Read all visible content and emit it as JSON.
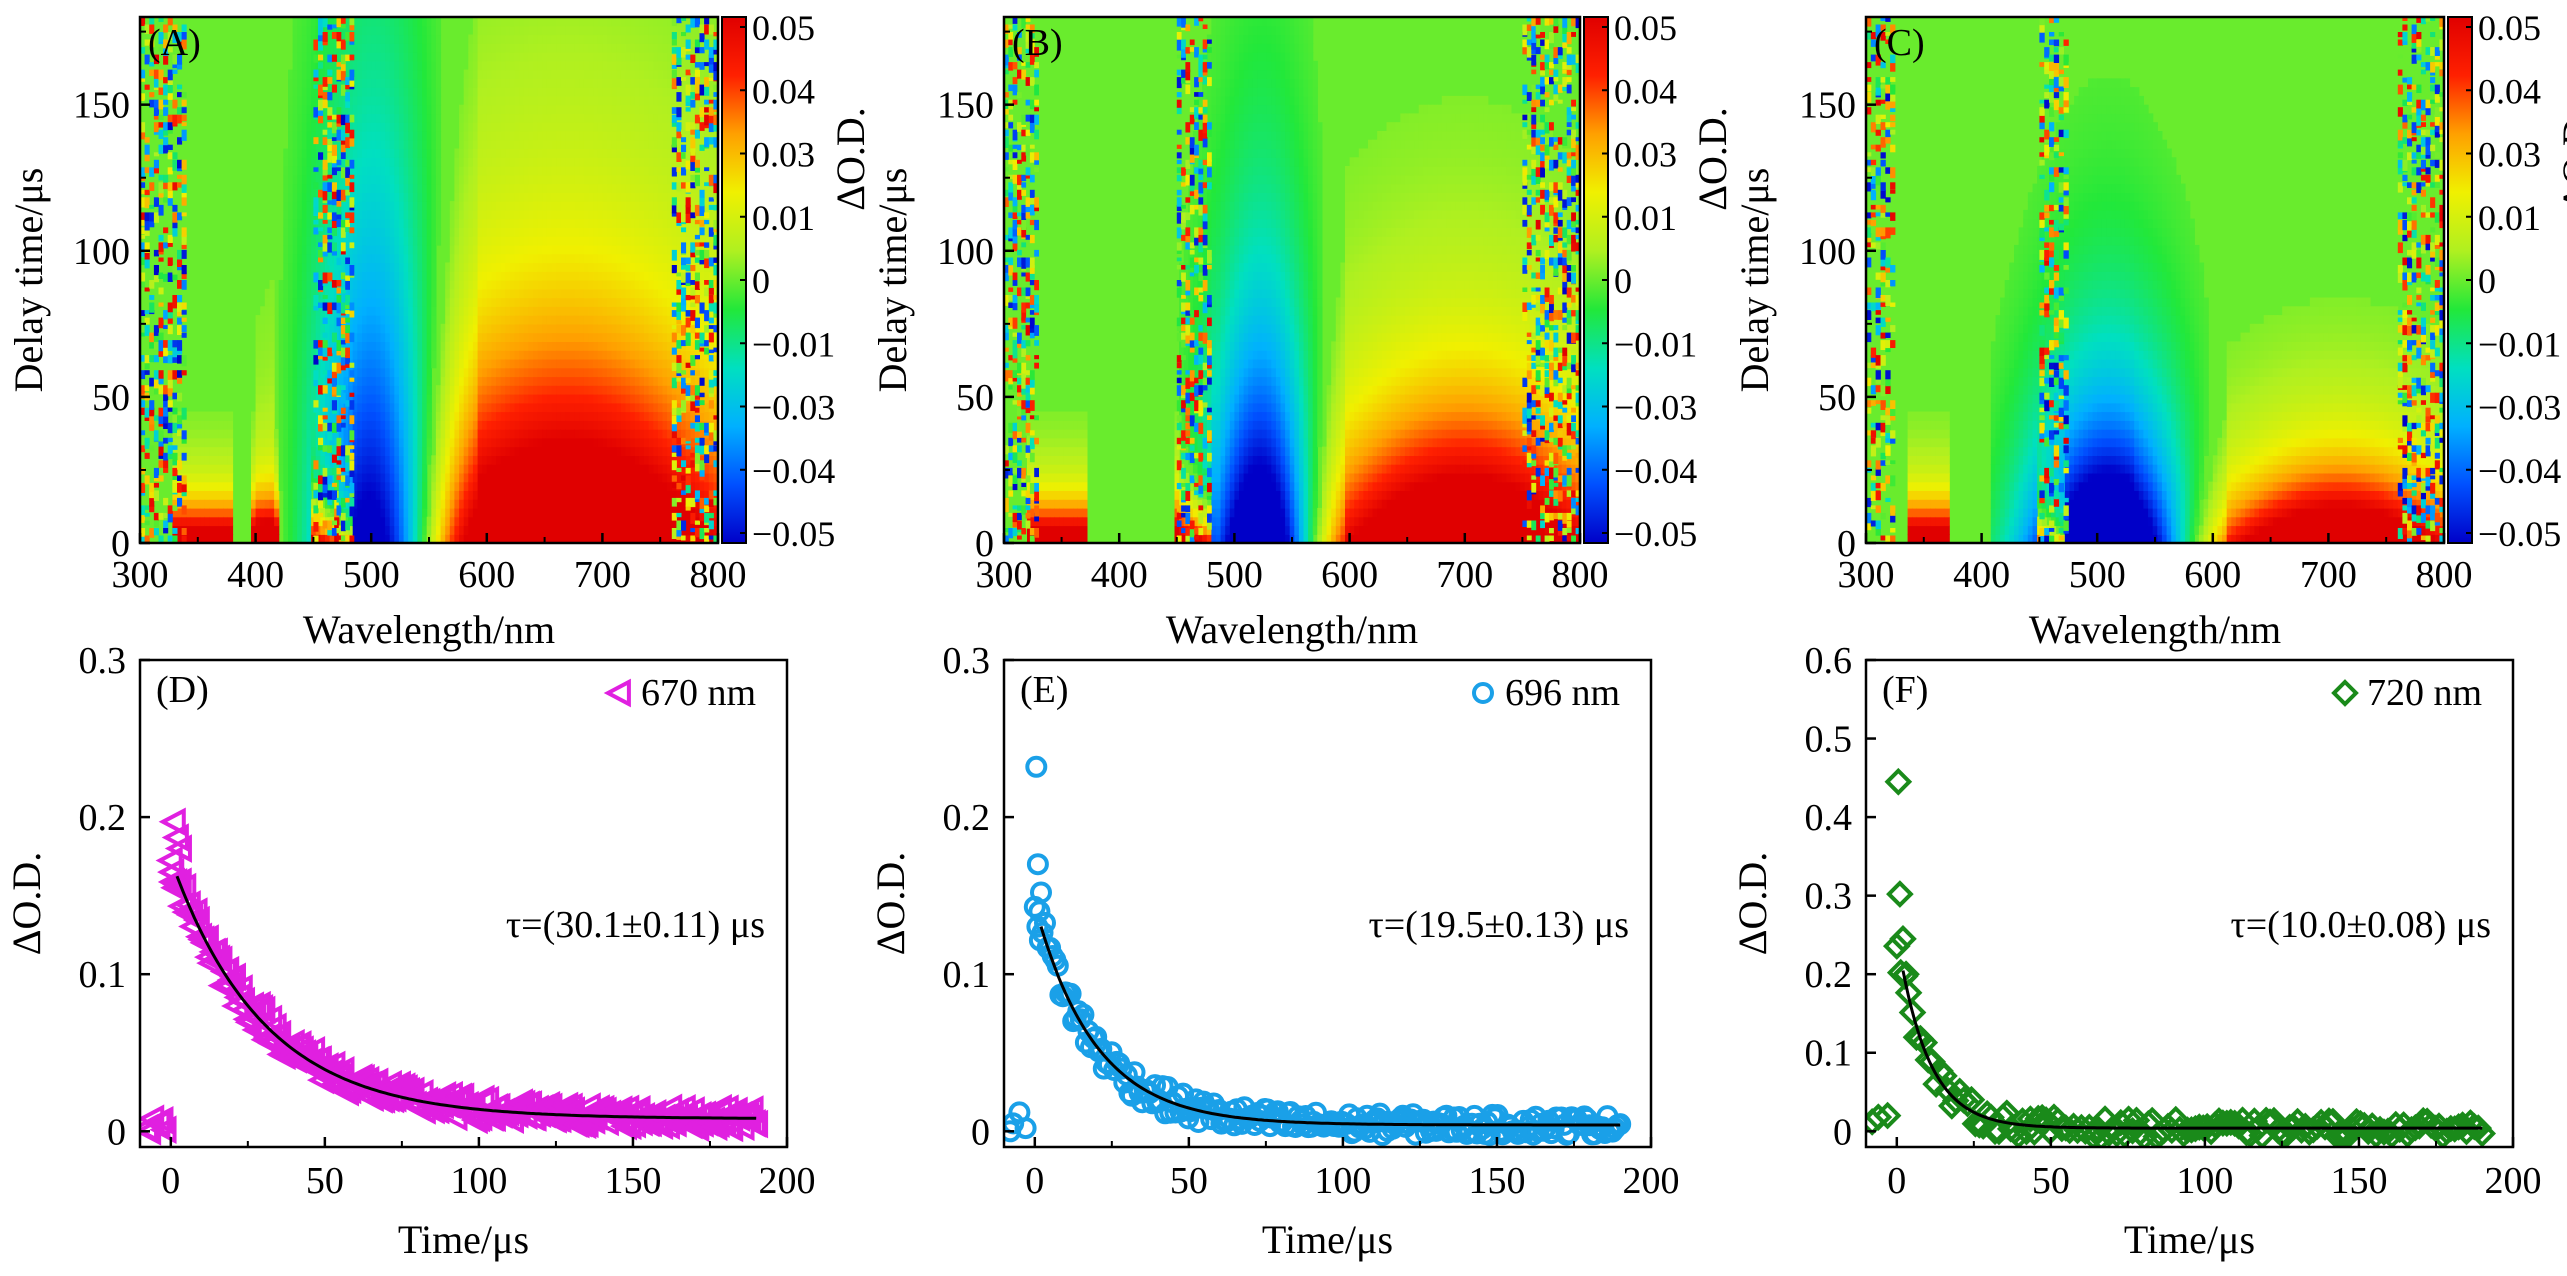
{
  "heatmap_colors": {
    "negative": "#0a0af0",
    "zero": "#22e83a",
    "positive": "#ff1010",
    "colorbar_stops": [
      "#0000c8",
      "#0050ff",
      "#00b0ff",
      "#00e0c0",
      "#22e83a",
      "#b0f020",
      "#f0f000",
      "#ffa000",
      "#ff2000",
      "#e00000"
    ]
  },
  "chart_data": [
    {
      "id": "A",
      "type": "heatmap",
      "panel_label": "(A)",
      "xlabel": "Wavelength/nm",
      "ylabel": "Delay time/μs",
      "xlim": [
        300,
        800
      ],
      "ylim": [
        0,
        180
      ],
      "xticks": [
        "300",
        "400",
        "500",
        "600",
        "700",
        "800"
      ],
      "yticks": [
        "0",
        "50",
        "100",
        "150"
      ],
      "colorbar_label": "ΔO.D.",
      "colorbar_ticks": [
        "0.05",
        "0.04",
        "0.03",
        "0.01",
        "0",
        "−0.01",
        "−0.03",
        "−0.04",
        "−0.05"
      ],
      "zlim": [
        -0.05,
        0.05
      ],
      "features": {
        "noise_bands": [
          [
            300,
            340
          ],
          [
            450,
            470
          ],
          [
            470,
            485
          ],
          [
            760,
            800
          ]
        ],
        "positive_uv_bands": [
          [
            330,
            380
          ],
          [
            395,
            420
          ],
          [
            450,
            470
          ],
          [
            470,
            485
          ]
        ],
        "bleach_center": 505,
        "bleach_halfwidth": 55,
        "bleach_lifetime": 90,
        "absorption_center": 670,
        "absorption_halfwidth": 150,
        "absorption_lifetime": 60
      }
    },
    {
      "id": "B",
      "type": "heatmap",
      "panel_label": "(B)",
      "xlabel": "Wavelength/nm",
      "ylabel": "Delay time/μs",
      "xlim": [
        300,
        800
      ],
      "ylim": [
        0,
        180
      ],
      "xticks": [
        "300",
        "400",
        "500",
        "600",
        "700",
        "800"
      ],
      "yticks": [
        "0",
        "50",
        "100",
        "150"
      ],
      "colorbar_label": "ΔO.D.",
      "colorbar_ticks": [
        "0.05",
        "0.04",
        "0.03",
        "0.01",
        "0",
        "−0.01",
        "−0.03",
        "−0.04",
        "−0.05"
      ],
      "zlim": [
        -0.05,
        0.05
      ],
      "features": {
        "noise_bands": [
          [
            300,
            330
          ],
          [
            450,
            480
          ],
          [
            750,
            800
          ]
        ],
        "positive_uv_bands": [
          [
            320,
            370
          ],
          [
            450,
            480
          ]
        ],
        "bleach_center": 525,
        "bleach_halfwidth": 45,
        "bleach_lifetime": 62,
        "absorption_center": 700,
        "absorption_halfwidth": 120,
        "absorption_lifetime": 40
      }
    },
    {
      "id": "C",
      "type": "heatmap",
      "panel_label": "(C)",
      "xlabel": "Wavelength/nm",
      "ylabel": "Delay time/μs",
      "xlim": [
        300,
        800
      ],
      "ylim": [
        0,
        180
      ],
      "xticks": [
        "300",
        "400",
        "500",
        "600",
        "700",
        "800"
      ],
      "yticks": [
        "0",
        "50",
        "100",
        "150"
      ],
      "colorbar_label": "ΔO.D.",
      "colorbar_ticks": [
        "0.05",
        "0.04",
        "0.03",
        "0.01",
        "0",
        "−0.01",
        "−0.03",
        "−0.04",
        "−0.05"
      ],
      "zlim": [
        -0.05,
        0.05
      ],
      "features": {
        "noise_bands": [
          [
            300,
            325
          ],
          [
            450,
            475
          ],
          [
            760,
            800
          ]
        ],
        "positive_uv_bands": [
          [
            335,
            370
          ],
          [
            450,
            470
          ]
        ],
        "bleach_center": 510,
        "bleach_halfwidth": 65,
        "bleach_lifetime": 42,
        "absorption_center": 710,
        "absorption_halfwidth": 100,
        "absorption_lifetime": 22
      }
    },
    {
      "id": "D",
      "type": "scatter",
      "panel_label": "(D)",
      "xlabel": "Time/μs",
      "ylabel": "ΔO.D.",
      "xlim": [
        -10,
        200
      ],
      "ylim": [
        -0.01,
        0.3
      ],
      "xticks": [
        "0",
        "50",
        "100",
        "150",
        "200"
      ],
      "yticks": [
        "0",
        "0.1",
        "0.2",
        "0.3"
      ],
      "series": [
        {
          "name": "670 nm",
          "marker": "triangle-left",
          "color": "#e020e0",
          "x_start": 0,
          "x_end": 190,
          "n_points": 260,
          "fit": {
            "amplitude": 0.165,
            "tau": 30.1,
            "offset": 0.008
          },
          "pre_zero_points": [
            [
              -8,
              0.002
            ],
            [
              -6,
              0.008
            ],
            [
              -4,
              0.005
            ],
            [
              -2,
              0.001
            ],
            [
              -7,
              0.0
            ],
            [
              -3,
              0.007
            ]
          ],
          "peak_points": [
            [
              1,
              0.197
            ],
            [
              2,
              0.187
            ],
            [
              3,
              0.18
            ],
            [
              0.5,
              0.165
            ],
            [
              1.5,
              0.155
            ]
          ]
        }
      ],
      "fit_line_color": "#000000",
      "annotation": "τ=(30.1±0.11) μs"
    },
    {
      "id": "E",
      "type": "scatter",
      "panel_label": "(E)",
      "xlabel": "Time/μs",
      "ylabel": "ΔO.D.",
      "xlim": [
        -10,
        200
      ],
      "ylim": [
        -0.01,
        0.3
      ],
      "xticks": [
        "0",
        "50",
        "100",
        "150",
        "200"
      ],
      "yticks": [
        "0",
        "0.1",
        "0.2",
        "0.3"
      ],
      "series": [
        {
          "name": "696 nm",
          "marker": "circle",
          "color": "#1aa0e8",
          "x_start": 0,
          "x_end": 190,
          "n_points": 230,
          "fit": {
            "amplitude": 0.14,
            "tau": 19.5,
            "offset": 0.004
          },
          "pre_zero_points": [
            [
              -7,
              0.005
            ],
            [
              -5,
              0.012
            ],
            [
              -3,
              0.002
            ],
            [
              -8,
              0.0
            ]
          ],
          "peak_points": [
            [
              0.5,
              0.232
            ],
            [
              1,
              0.17
            ],
            [
              2,
              0.152
            ],
            [
              1.5,
              0.14
            ]
          ]
        }
      ],
      "fit_line_color": "#000000",
      "annotation": "τ=(19.5±0.13) μs"
    },
    {
      "id": "F",
      "type": "scatter",
      "panel_label": "(F)",
      "xlabel": "Time/μs",
      "ylabel": "ΔO.D.",
      "xlim": [
        -10,
        200
      ],
      "ylim": [
        -0.02,
        0.6
      ],
      "xticks": [
        "0",
        "50",
        "100",
        "150",
        "200"
      ],
      "yticks": [
        "0",
        "0.1",
        "0.2",
        "0.3",
        "0.4",
        "0.5",
        "0.6"
      ],
      "series": [
        {
          "name": "720 nm",
          "marker": "diamond",
          "color": "#1a8a1a",
          "x_start": 0,
          "x_end": 190,
          "n_points": 150,
          "fit": {
            "amplitude": 0.245,
            "tau": 10.0,
            "offset": 0.004
          },
          "pre_zero_points": [
            [
              -6,
              0.018
            ],
            [
              -3,
              0.02
            ],
            [
              -8,
              0.012
            ]
          ],
          "peak_points": [
            [
              0.5,
              0.445
            ],
            [
              1,
              0.302
            ],
            [
              2,
              0.245
            ],
            [
              3,
              0.2
            ]
          ]
        }
      ],
      "fit_line_color": "#000000",
      "annotation": "τ=(10.0±0.08) μs"
    }
  ]
}
